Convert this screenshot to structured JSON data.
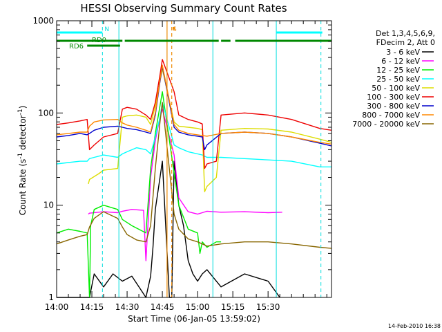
{
  "chart_data": {
    "type": "line",
    "title": "HESSI Observing Summary Count Rates",
    "xlabel": "Start Time (06-Jan-05 13:59:02)",
    "ylabel": "Count Rate (s",
    "ylabel_sup": "-1",
    "ylabel_tail": " detector",
    "ylabel_close": ")",
    "y_scale": "log",
    "xlim": [
      0,
      117
    ],
    "ylim": [
      1,
      1000
    ],
    "x_tick_values": [
      0,
      15,
      30,
      45,
      60,
      75,
      90
    ],
    "x_tick_labels": [
      "14:00",
      "14:15",
      "14:30",
      "14:45",
      "15:00",
      "15:15",
      "15:30"
    ],
    "y_tick_values": [
      1,
      10,
      100,
      1000
    ],
    "y_tick_labels": [
      "1",
      "10",
      "100",
      "1000"
    ],
    "legend_header": [
      "Det 1,3,4,5,6,9,",
      "FDecim 2, Att 0"
    ],
    "legend_position": "right",
    "timestamp": "14-Feb-2010 16:38",
    "markers": [
      {
        "label": "N",
        "x": 19.5,
        "color": "#00dddd"
      },
      {
        "label": "S",
        "x": 48.5,
        "color": "#ee8800"
      }
    ],
    "state_bars": [
      {
        "label": "RD0",
        "color": "#008800"
      },
      {
        "label": "RD6",
        "color": "#008800"
      }
    ],
    "series": [
      {
        "name": "3 - 6 keV",
        "color": "#000000",
        "x": [
          0,
          14,
          16,
          20,
          24,
          28,
          32,
          38,
          40,
          41,
          42,
          44,
          45,
          48,
          49,
          50,
          52,
          54,
          56,
          58,
          60,
          62,
          64,
          70,
          80,
          90,
          95
        ],
        "y": [
          1.0,
          1.0,
          1.8,
          1.3,
          1.8,
          1.5,
          1.7,
          1.0,
          1.7,
          3.5,
          9.0,
          20,
          30,
          1.0,
          1.0,
          30,
          10,
          6,
          2.5,
          1.8,
          1.5,
          1.8,
          2.0,
          1.3,
          1.8,
          1.5,
          1.0
        ]
      },
      {
        "name": "6 - 12 keV",
        "color": "#ff00ff",
        "x": [
          13.5,
          14,
          20,
          26,
          28,
          32,
          37,
          38,
          40,
          42,
          44,
          45,
          50,
          52,
          56,
          60,
          62,
          64,
          70,
          80,
          90,
          96
        ],
        "y": [
          8,
          8.2,
          8.5,
          8.3,
          8.6,
          9,
          8.8,
          2.5,
          20,
          50,
          90,
          110,
          35,
          12,
          8.5,
          8,
          8.3,
          8.6,
          8.4,
          8.5,
          8.3,
          8.4
        ]
      },
      {
        "name": "12 - 25 keV",
        "color": "#00ee00",
        "x": [
          0,
          5,
          10,
          13,
          14,
          14.5,
          16,
          20,
          26,
          28,
          32,
          38,
          40,
          42,
          44,
          45,
          52,
          56,
          60,
          61,
          62,
          64,
          68,
          70
        ],
        "y": [
          5.0,
          5.5,
          5.2,
          5.0,
          1.0,
          6.0,
          9,
          10,
          9,
          7,
          6,
          5.0,
          25,
          60,
          120,
          170,
          10,
          5.5,
          5,
          3,
          4,
          3.5,
          4,
          4
        ]
      },
      {
        "name": "25 - 50 keV",
        "color": "#00ffff",
        "x": [
          0,
          5,
          10,
          13,
          14,
          16,
          20,
          26,
          28,
          30,
          34,
          38,
          40,
          42,
          44,
          45,
          50,
          52,
          56,
          60,
          62,
          64,
          70,
          80,
          90,
          100,
          112,
          117
        ],
        "y": [
          28,
          29,
          30,
          30,
          32,
          33,
          35,
          33,
          36,
          38,
          42,
          40,
          36,
          55,
          90,
          130,
          45,
          42,
          38,
          36,
          35,
          33,
          33,
          32,
          31,
          30,
          26,
          26
        ]
      },
      {
        "name": "50 - 100 keV",
        "color": "#dddd00",
        "x": [
          13.5,
          14,
          18,
          20,
          26,
          28,
          30,
          34,
          38,
          40,
          42,
          44,
          45,
          50,
          52,
          56,
          60,
          62,
          63,
          64,
          68,
          70,
          80,
          90,
          100,
          112,
          117
        ],
        "y": [
          17,
          19,
          22,
          24,
          25,
          90,
          93,
          95,
          90,
          75,
          120,
          220,
          300,
          80,
          72,
          70,
          68,
          66,
          14,
          16,
          20,
          65,
          68,
          67,
          62,
          52,
          48
        ]
      },
      {
        "name": "100 - 300 keV",
        "color": "#ee0000",
        "x": [
          0,
          5,
          10,
          13,
          14,
          16,
          20,
          26,
          28,
          30,
          34,
          38,
          40,
          42,
          44,
          45,
          50,
          52,
          56,
          60,
          62,
          63,
          64,
          68,
          70,
          80,
          90,
          100,
          112,
          117
        ],
        "y": [
          75,
          78,
          82,
          85,
          40,
          45,
          55,
          60,
          110,
          115,
          110,
          95,
          85,
          130,
          260,
          380,
          170,
          95,
          85,
          80,
          76,
          25,
          28,
          30,
          95,
          100,
          95,
          85,
          68,
          65
        ]
      },
      {
        "name": "300 - 800 keV",
        "color": "#0000cc",
        "x": [
          0,
          5,
          10,
          13,
          14,
          16,
          20,
          26,
          28,
          30,
          34,
          38,
          40,
          42,
          44,
          45,
          50,
          52,
          56,
          60,
          62,
          63,
          64,
          70,
          80,
          90,
          100,
          112,
          117
        ],
        "y": [
          55,
          57,
          60,
          58,
          60,
          65,
          70,
          72,
          70,
          68,
          66,
          62,
          60,
          95,
          220,
          320,
          70,
          62,
          58,
          56,
          55,
          40,
          45,
          60,
          62,
          60,
          55,
          47,
          44
        ]
      },
      {
        "name": "800 - 7000 keV",
        "color": "#ff8800",
        "x": [
          0,
          5,
          10,
          13,
          14,
          16,
          20,
          26,
          28,
          30,
          34,
          38,
          40,
          42,
          44,
          45,
          50,
          52,
          56,
          60,
          62,
          64,
          70,
          80,
          90,
          100,
          112,
          117
        ],
        "y": [
          58,
          60,
          62,
          62,
          72,
          80,
          84,
          85,
          78,
          74,
          70,
          65,
          62,
          100,
          230,
          330,
          75,
          65,
          60,
          58,
          57,
          56,
          60,
          62,
          60,
          55,
          48,
          46
        ]
      },
      {
        "name": "7000 - 20000 keV",
        "color": "#886600",
        "x": [
          0,
          5,
          10,
          13,
          14,
          16,
          20,
          26,
          28,
          30,
          34,
          38,
          40,
          42,
          44,
          45,
          50,
          52,
          56,
          60,
          62,
          64,
          70,
          80,
          90,
          100,
          112,
          117
        ],
        "y": [
          3.8,
          4.2,
          4.6,
          4.8,
          5.8,
          7.2,
          8.5,
          7.2,
          5.8,
          4.8,
          4.2,
          4.0,
          6,
          25,
          80,
          130,
          8,
          5.5,
          4.3,
          4.0,
          3.8,
          3.6,
          3.8,
          4.0,
          4.0,
          3.8,
          3.5,
          3.4
        ]
      }
    ]
  }
}
